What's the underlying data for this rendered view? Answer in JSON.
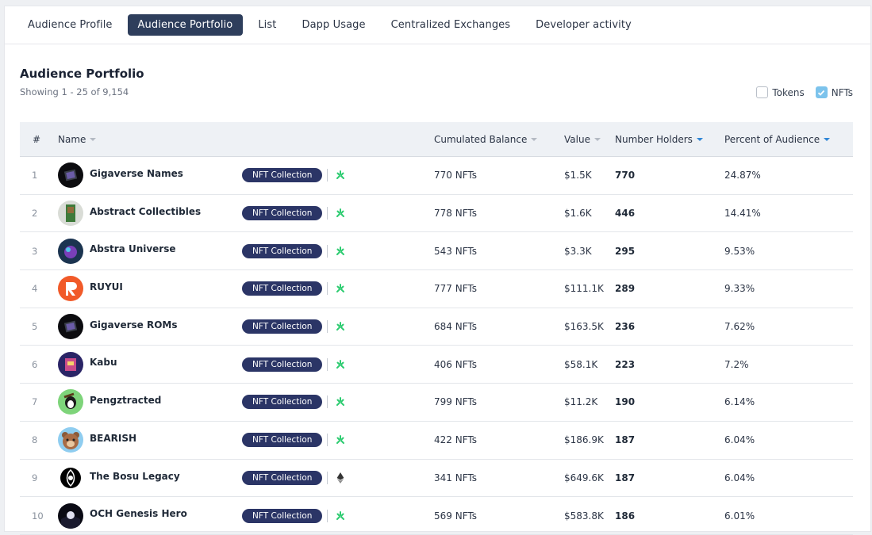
{
  "tabs": [
    {
      "label": "Audience Profile",
      "active": false
    },
    {
      "label": "Audience Portfolio",
      "active": true
    },
    {
      "label": "List",
      "active": false
    },
    {
      "label": "Dapp Usage",
      "active": false
    },
    {
      "label": "Centralized Exchanges",
      "active": false
    },
    {
      "label": "Developer activity",
      "active": false
    }
  ],
  "section": {
    "title": "Audience Portfolio",
    "subtitle": "Showing 1 - 25 of 9,154"
  },
  "filters": {
    "tokens_label": "Tokens",
    "tokens_checked": false,
    "nfts_label": "NFTs",
    "nfts_checked": true
  },
  "table": {
    "headers": {
      "rank": "#",
      "name": "Name",
      "balance": "Cumulated Balance",
      "value": "Value",
      "holders": "Number Holders",
      "percent": "Percent of Audience"
    },
    "badge_label": "NFT Collection",
    "rows": [
      {
        "rank": "1",
        "name": "Gigaverse Names",
        "balance": "770 NFTs",
        "value": "$1.5K",
        "holders": "770",
        "percent": "24.87%",
        "chain": "abstract",
        "avatar": "gigaverse"
      },
      {
        "rank": "2",
        "name": "Abstract Collectibles",
        "balance": "778 NFTs",
        "value": "$1.6K",
        "holders": "446",
        "percent": "14.41%",
        "chain": "abstract",
        "avatar": "collectibles"
      },
      {
        "rank": "3",
        "name": "Abstra Universe",
        "balance": "543 NFTs",
        "value": "$3.3K",
        "holders": "295",
        "percent": "9.53%",
        "chain": "abstract",
        "avatar": "universe"
      },
      {
        "rank": "4",
        "name": "RUYUI",
        "balance": "777 NFTs",
        "value": "$111.1K",
        "holders": "289",
        "percent": "9.33%",
        "chain": "abstract",
        "avatar": "ruyui"
      },
      {
        "rank": "5",
        "name": "Gigaverse ROMs",
        "balance": "684 NFTs",
        "value": "$163.5K",
        "holders": "236",
        "percent": "7.62%",
        "chain": "abstract",
        "avatar": "gigaverse"
      },
      {
        "rank": "6",
        "name": "Kabu",
        "balance": "406 NFTs",
        "value": "$58.1K",
        "holders": "223",
        "percent": "7.2%",
        "chain": "abstract",
        "avatar": "kabu"
      },
      {
        "rank": "7",
        "name": "Pengztracted",
        "balance": "799 NFTs",
        "value": "$11.2K",
        "holders": "190",
        "percent": "6.14%",
        "chain": "abstract",
        "avatar": "peng"
      },
      {
        "rank": "8",
        "name": "BEARISH",
        "balance": "422 NFTs",
        "value": "$186.9K",
        "holders": "187",
        "percent": "6.04%",
        "chain": "abstract",
        "avatar": "bear"
      },
      {
        "rank": "9",
        "name": "The Bosu Legacy",
        "balance": "341 NFTs",
        "value": "$649.6K",
        "holders": "187",
        "percent": "6.04%",
        "chain": "ethereum",
        "avatar": "bosu"
      },
      {
        "rank": "10",
        "name": "OCH Genesis Hero",
        "balance": "569 NFTs",
        "value": "$583.8K",
        "holders": "186",
        "percent": "6.01%",
        "chain": "abstract",
        "avatar": "och"
      }
    ]
  },
  "colors": {
    "active_tab": "#2e3e5c",
    "badge": "#2b3566",
    "abstract_green": "#2ecc71",
    "sort_blue": "#2f86d6"
  }
}
